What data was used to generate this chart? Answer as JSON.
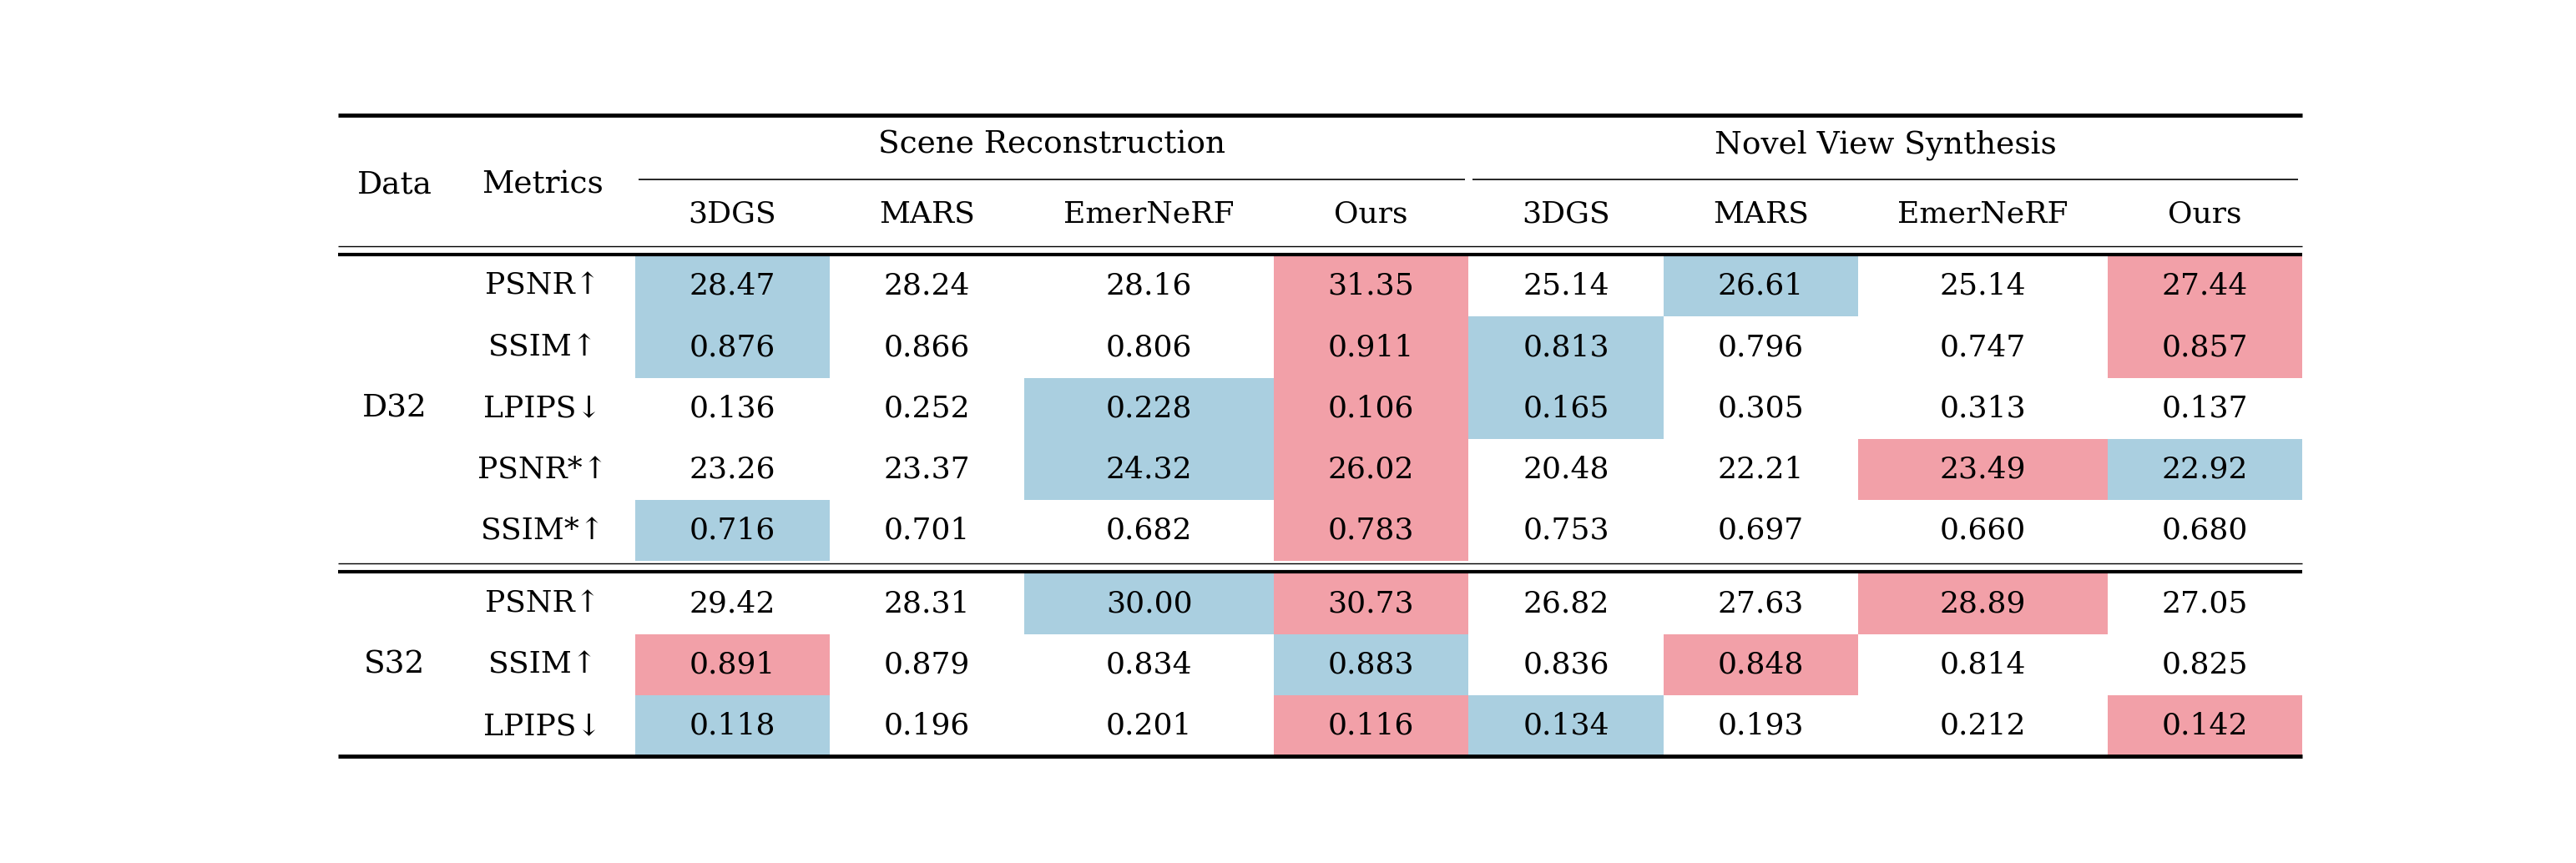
{
  "col_headers_sub": [
    "3DGS",
    "MARS",
    "EmerNeRF",
    "Ours",
    "3DGS",
    "MARS",
    "EmerNeRF",
    "Ours"
  ],
  "data_D32": {
    "PSNR↑": [
      28.47,
      28.24,
      28.16,
      31.35,
      25.14,
      26.61,
      25.14,
      27.44
    ],
    "SSIM↑": [
      0.876,
      0.866,
      0.806,
      0.911,
      0.813,
      0.796,
      0.747,
      0.857
    ],
    "LPIPS↓": [
      0.136,
      0.252,
      0.228,
      0.106,
      0.165,
      0.305,
      0.313,
      0.137
    ],
    "PSNR*↑": [
      23.26,
      23.37,
      24.32,
      26.02,
      20.48,
      22.21,
      23.49,
      22.92
    ],
    "SSIM*↑": [
      0.716,
      0.701,
      0.682,
      0.783,
      0.753,
      0.697,
      0.66,
      0.68
    ]
  },
  "data_S32": {
    "PSNR↑": [
      29.42,
      28.31,
      30.0,
      30.73,
      26.82,
      27.63,
      28.89,
      27.05
    ],
    "SSIM↑": [
      0.891,
      0.879,
      0.834,
      0.883,
      0.836,
      0.848,
      0.814,
      0.825
    ],
    "LPIPS↓": [
      0.118,
      0.196,
      0.201,
      0.116,
      0.134,
      0.193,
      0.212,
      0.142
    ]
  },
  "fmt_D32": {
    "PSNR↑": [
      "28.47",
      "28.24",
      "28.16",
      "31.35",
      "25.14",
      "26.61",
      "25.14",
      "27.44"
    ],
    "SSIM↑": [
      "0.876",
      "0.866",
      "0.806",
      "0.911",
      "0.813",
      "0.796",
      "0.747",
      "0.857"
    ],
    "LPIPS↓": [
      "0.136",
      "0.252",
      "0.228",
      "0.106",
      "0.165",
      "0.305",
      "0.313",
      "0.137"
    ],
    "PSNR*↑": [
      "23.26",
      "23.37",
      "24.32",
      "26.02",
      "20.48",
      "22.21",
      "23.49",
      "22.92"
    ],
    "SSIM*↑": [
      "0.716",
      "0.701",
      "0.682",
      "0.783",
      "0.753",
      "0.697",
      "0.660",
      "0.680"
    ]
  },
  "fmt_S32": {
    "PSNR↑": [
      "29.42",
      "28.31",
      "30.00",
      "30.73",
      "26.82",
      "27.63",
      "28.89",
      "27.05"
    ],
    "SSIM↑": [
      "0.891",
      "0.879",
      "0.834",
      "0.883",
      "0.836",
      "0.848",
      "0.814",
      "0.825"
    ],
    "LPIPS↓": [
      "0.118",
      "0.196",
      "0.201",
      "0.116",
      "0.134",
      "0.193",
      "0.212",
      "0.142"
    ]
  },
  "colors_D32": {
    "PSNR↑": [
      "blue",
      null,
      null,
      "pink",
      null,
      "blue",
      null,
      "pink"
    ],
    "SSIM↑": [
      "blue",
      null,
      null,
      "pink",
      "blue",
      null,
      null,
      "pink"
    ],
    "LPIPS↓": [
      null,
      null,
      "blue",
      "pink",
      "blue",
      null,
      null,
      null
    ],
    "PSNR*↑": [
      null,
      null,
      "blue",
      "pink",
      null,
      null,
      "pink",
      "blue"
    ],
    "SSIM*↑": [
      "blue",
      null,
      null,
      "pink",
      null,
      null,
      null,
      null
    ]
  },
  "colors_S32": {
    "PSNR↑": [
      null,
      null,
      "blue",
      "pink",
      null,
      null,
      "pink",
      null
    ],
    "SSIM↑": [
      "pink",
      null,
      null,
      "blue",
      null,
      "pink",
      null,
      null
    ],
    "LPIPS↓": [
      "blue",
      null,
      null,
      "pink",
      "blue",
      null,
      null,
      "pink"
    ]
  },
  "blue_color": "#aacfe0",
  "pink_color": "#f2a0a8",
  "font_size": 26,
  "header_font_size": 27,
  "fig_width": 30.86,
  "fig_height": 10.34
}
